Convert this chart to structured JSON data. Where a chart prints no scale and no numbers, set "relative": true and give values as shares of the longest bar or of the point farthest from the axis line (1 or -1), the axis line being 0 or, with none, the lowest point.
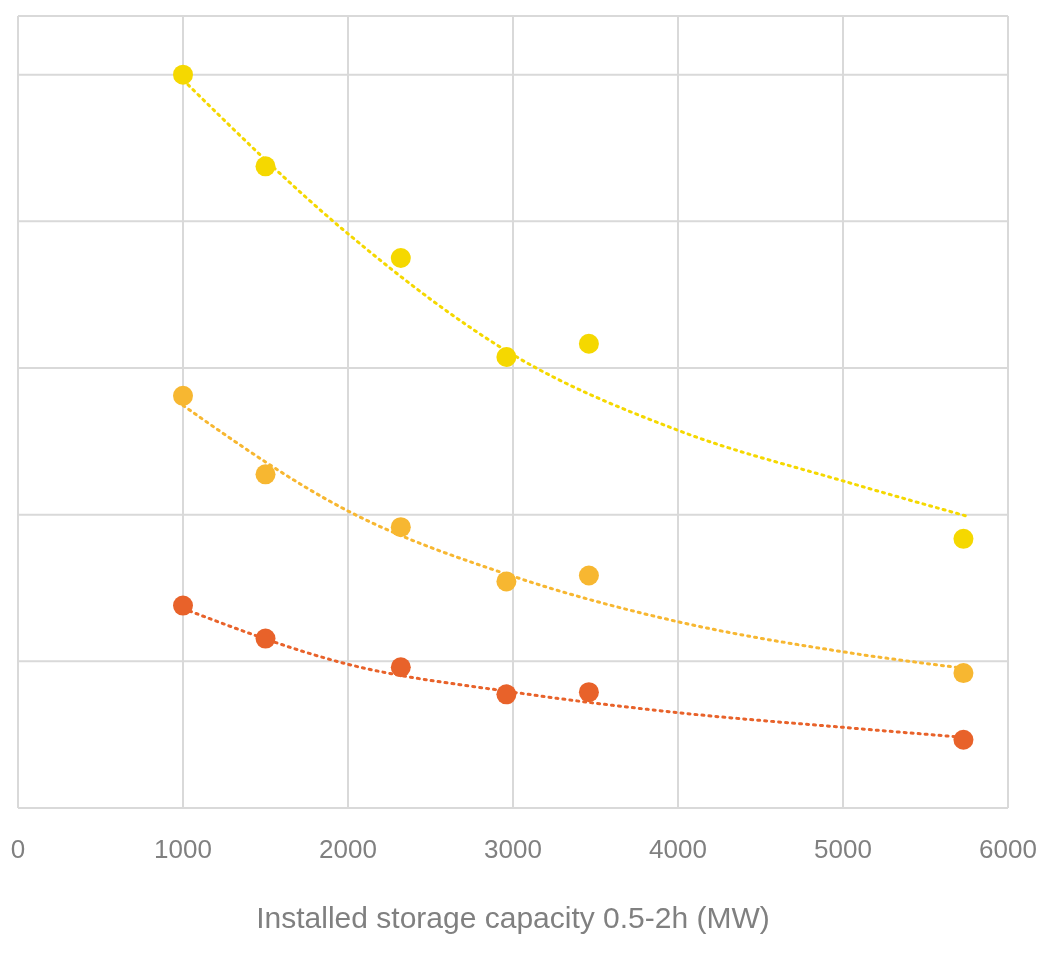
{
  "chart_data": {
    "type": "scatter",
    "xlabel": "Installed storage capacity 0.5-2h (MW)",
    "relative": true,
    "xlim": [
      0,
      6000
    ],
    "xticks": [
      0,
      1000,
      2000,
      3000,
      4000,
      5000,
      6000
    ],
    "grid": true,
    "legend": false,
    "marker": "circle",
    "series": [
      {
        "color": "#f5d800",
        "x": [
          1000,
          1500,
          2320,
          2960,
          3460,
          5730
        ],
        "values": [
          1.0,
          0.875,
          0.75,
          0.615,
          0.633,
          0.367
        ]
      },
      {
        "color": "#f7b731",
        "x": [
          1000,
          1500,
          2320,
          2960,
          3460,
          5730
        ],
        "values": [
          0.562,
          0.455,
          0.383,
          0.309,
          0.317,
          0.184
        ]
      },
      {
        "color": "#e8622a",
        "x": [
          1000,
          1500,
          2320,
          2960,
          3460,
          5730
        ],
        "values": [
          0.276,
          0.231,
          0.192,
          0.155,
          0.158,
          0.093
        ]
      },
      {
        "type": "line",
        "color": "#f5d800",
        "marker": "none",
        "line_style": "dotted",
        "x": [
          1000,
          2000,
          3000,
          4000,
          5000,
          5750
        ],
        "values": [
          0.993,
          0.783,
          0.618,
          0.515,
          0.446,
          0.398
        ]
      },
      {
        "type": "line",
        "color": "#f7b731",
        "marker": "none",
        "line_style": "dotted",
        "x": [
          1000,
          2000,
          3000,
          4000,
          5000,
          5750
        ],
        "values": [
          0.549,
          0.405,
          0.316,
          0.254,
          0.213,
          0.19
        ]
      },
      {
        "type": "line",
        "color": "#e8622a",
        "marker": "none",
        "line_style": "dotted",
        "x": [
          1000,
          2000,
          3000,
          4000,
          5000,
          5750
        ],
        "values": [
          0.272,
          0.196,
          0.158,
          0.13,
          0.11,
          0.096
        ]
      }
    ]
  }
}
